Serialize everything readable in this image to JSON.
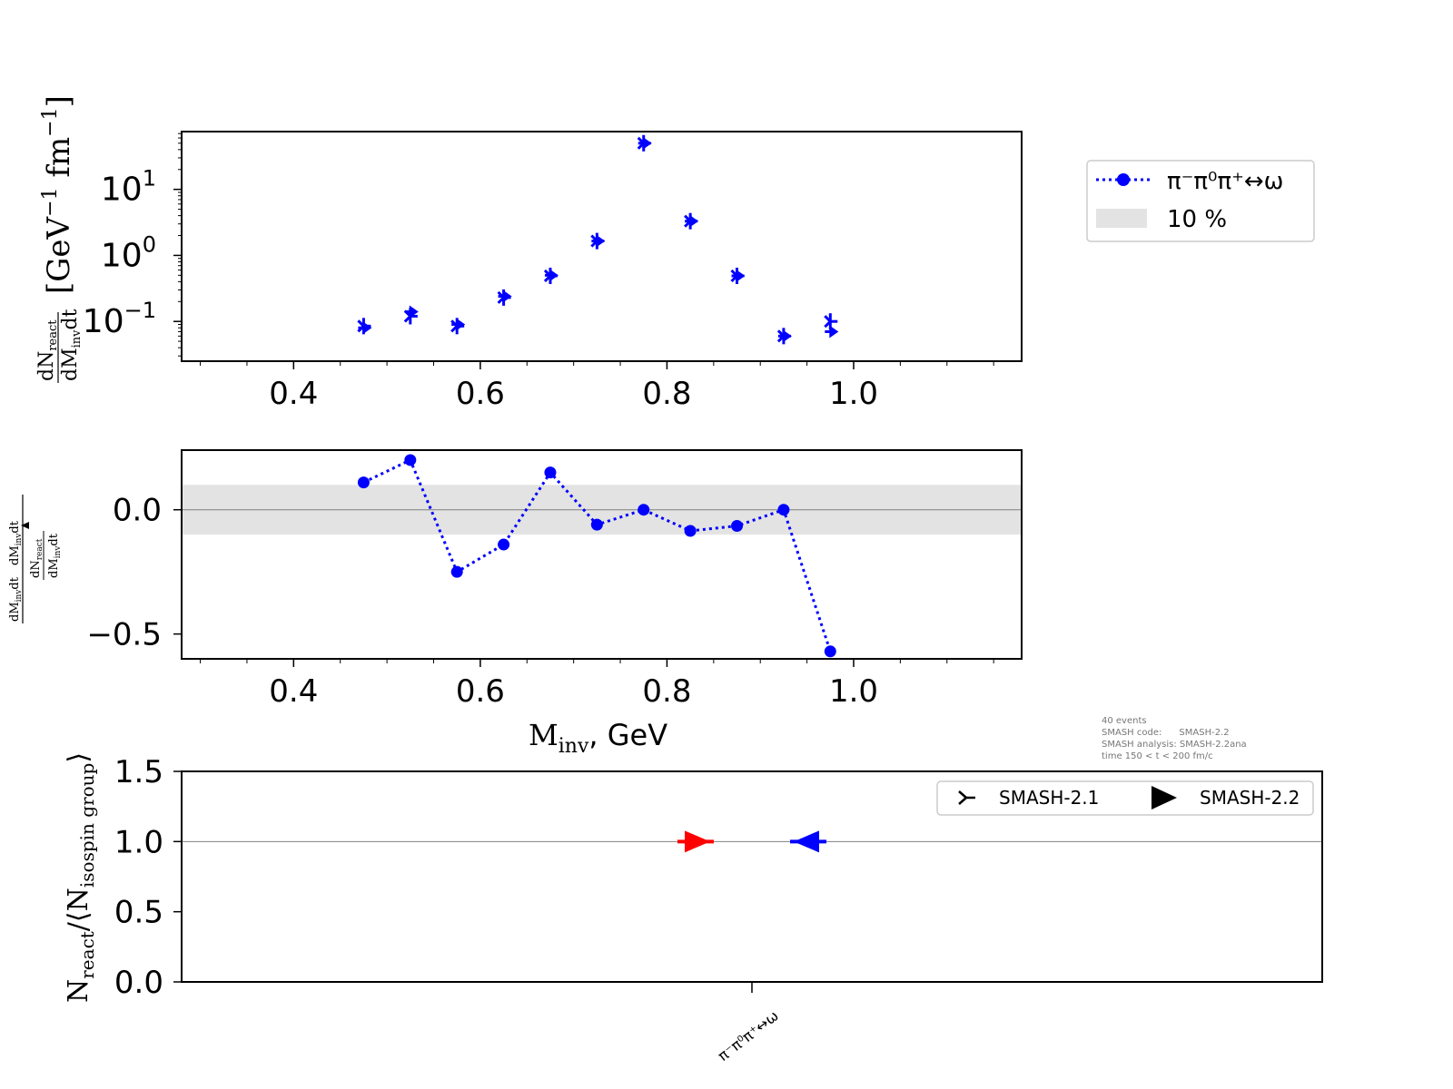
{
  "chart_data": [
    {
      "type": "scatter",
      "yscale": "log",
      "xlim": [
        0.28,
        1.18
      ],
      "ylim": [
        0.025,
        75
      ],
      "ylabel_frac_num": "dN",
      "ylabel_frac_num_sub": "react",
      "ylabel_frac_den": "dM",
      "ylabel_frac_den_sub": "inv",
      "ylabel_frac_den_tail": "dt",
      "ylabel_units": "[GeV",
      "ylabel_units_exp": "−1",
      "ylabel_units_mid": "fm",
      "ylabel_units_exp2": "−1",
      "ylabel_units_end": "]",
      "xticks": [
        "0.4",
        "0.6",
        "0.8",
        "1.0"
      ],
      "xtick_values": [
        0.4,
        0.6,
        0.8,
        1.0
      ],
      "yticks": [
        {
          "base": "10",
          "exp": "−1",
          "value": 0.1
        },
        {
          "base": "10",
          "exp": "0",
          "value": 1
        },
        {
          "base": "10",
          "exp": "1",
          "value": 10
        }
      ],
      "series": [
        {
          "name": "SMASH-2.1",
          "marker": "tri_right",
          "color": "#0000ff",
          "x": [
            0.475,
            0.525,
            0.575,
            0.625,
            0.675,
            0.725,
            0.775,
            0.825,
            0.875,
            0.925,
            0.975
          ],
          "y": [
            0.085,
            0.12,
            0.085,
            0.23,
            0.49,
            1.65,
            50,
            3.3,
            0.49,
            0.06,
            0.1
          ]
        },
        {
          "name": "SMASH-2.2",
          "marker": "triangle_right",
          "color": "#0000ff",
          "x": [
            0.475,
            0.525,
            0.575,
            0.625,
            0.675,
            0.725,
            0.775,
            0.825,
            0.875,
            0.925,
            0.975
          ],
          "y": [
            0.08,
            0.14,
            0.09,
            0.24,
            0.5,
            1.65,
            50,
            3.3,
            0.49,
            0.06,
            0.07
          ]
        }
      ]
    },
    {
      "type": "line",
      "xlim": [
        0.28,
        1.18
      ],
      "ylim": [
        -0.6,
        0.24
      ],
      "xlabel_main": "M",
      "xlabel_sub": "inv",
      "xlabel_tail": ", GeV",
      "xticks": [
        "0.4",
        "0.6",
        "0.8",
        "1.0"
      ],
      "xtick_values": [
        0.4,
        0.6,
        0.8,
        1.0
      ],
      "yticks": [
        "0.0",
        "−0.5"
      ],
      "ytick_values": [
        0.0,
        -0.5
      ],
      "band": [
        -0.1,
        0.1
      ],
      "ylabel_num_a": "dM",
      "ylabel_num_a_sub": "inv",
      "ylabel_num_a_tail": "dt",
      "ylabel_num_b": "dM",
      "ylabel_num_b_sub": "inv",
      "ylabel_num_b_tail": "dt",
      "ylabel_den_num": "dN",
      "ylabel_den_num_sub": "react",
      "ylabel_den_den": "dM",
      "ylabel_den_den_sub": "inv",
      "ylabel_den_den_tail": "dt",
      "series": [
        {
          "name": "π⁻π⁰π⁺↔ω",
          "color": "#0000ff",
          "x": [
            0.475,
            0.525,
            0.575,
            0.625,
            0.675,
            0.725,
            0.775,
            0.825,
            0.875,
            0.925,
            0.975
          ],
          "y": [
            0.11,
            0.2,
            -0.25,
            -0.14,
            0.15,
            -0.06,
            0.0,
            -0.085,
            -0.065,
            0.0,
            -0.57
          ]
        }
      ]
    },
    {
      "type": "scatter",
      "ylim": [
        0,
        1.5
      ],
      "yticks": [
        "0.0",
        "0.5",
        "1.0",
        "1.5"
      ],
      "ytick_values": [
        0.0,
        0.5,
        1.0,
        1.5
      ],
      "categories": [
        "π⁻π⁰π⁺↔ω"
      ],
      "ylabel_a": "N",
      "ylabel_a_sub": "react",
      "ylabel_b": "/⟨N",
      "ylabel_b_sub": "isospin group",
      "ylabel_c": "⟩",
      "series": [
        {
          "name": "SMASH-2.1",
          "color": "#ff0000",
          "values": [
            1.0
          ]
        },
        {
          "name": "SMASH-2.2",
          "color": "#0000ff",
          "values": [
            1.0
          ]
        }
      ]
    }
  ],
  "legend_top": {
    "line_label": "π⁻π⁰π⁺↔ω",
    "band_label": "10 %"
  },
  "legend_bottom": {
    "item1": "SMASH-2.1",
    "item2": "SMASH-2.2"
  },
  "info": {
    "line1": "40 events",
    "line2": "SMASH code:      SMASH-2.2",
    "line3": "SMASH analysis: SMASH-2.2ana",
    "line4": "time 150 < t < 200 fm/c"
  },
  "colors": {
    "blue": "#0000ff",
    "red": "#ff0000",
    "band": "#e3e3e3",
    "refline": "#808080"
  }
}
